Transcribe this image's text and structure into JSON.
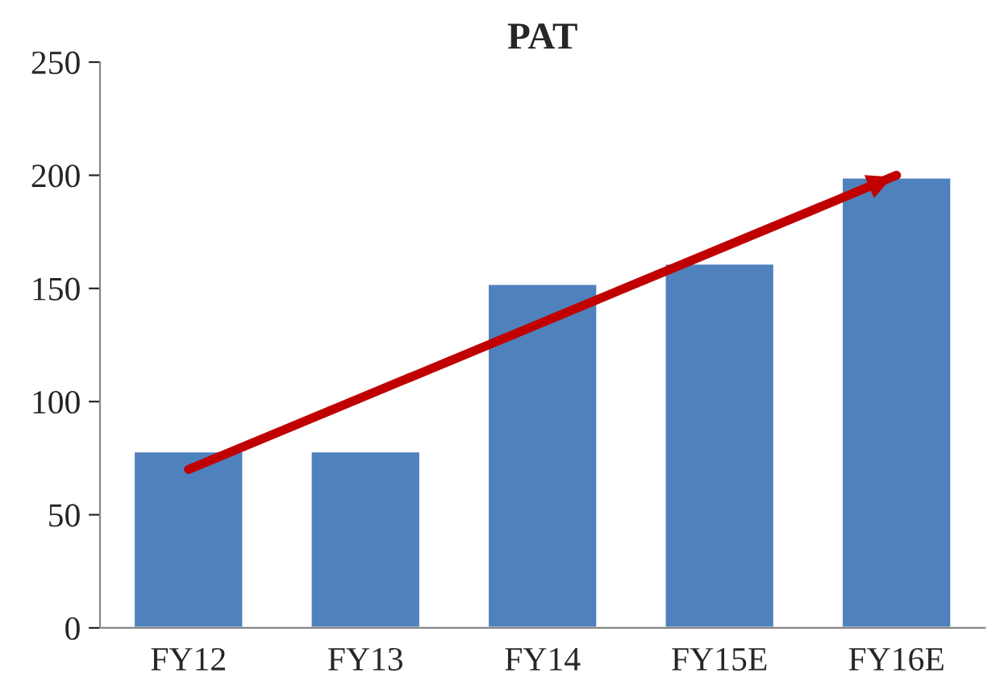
{
  "chart_data": {
    "type": "bar",
    "title": "PAT",
    "categories": [
      "FY12",
      "FY13",
      "FY14",
      "FY15E",
      "FY16E"
    ],
    "series": [
      {
        "color": "#4f81bd",
        "values": [
          78,
          78,
          152,
          161,
          199
        ]
      },
      {
        "type": "line",
        "color": "#c00000",
        "x": [
          "FY12",
          "FY16E"
        ],
        "values": [
          70,
          200
        ],
        "marker": "none"
      }
    ],
    "ylim": [
      0,
      250
    ],
    "yticks": [
      0,
      50,
      100,
      150,
      200,
      250
    ],
    "grid": false,
    "legend": false
  }
}
